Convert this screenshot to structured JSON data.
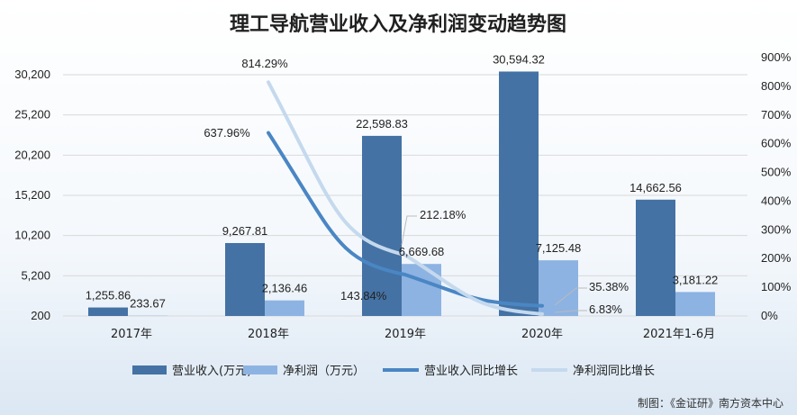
{
  "chart_data": {
    "type": "bar+line",
    "title": "理工导航营业收入及净利润变动趋势图",
    "categories": [
      "2017年",
      "2018年",
      "2019年",
      "2020年",
      "2021年1-6月"
    ],
    "series": [
      {
        "name": "营业收入(万元)",
        "kind": "bar",
        "axis": "left",
        "color": "#4472a4",
        "values": [
          1255.86,
          9267.81,
          22598.83,
          30594.32,
          14662.56
        ],
        "labels": [
          "1,255.86",
          "9,267.81",
          "22,598.83",
          "30,594.32",
          "14,662.56"
        ]
      },
      {
        "name": "净利润（万元）",
        "kind": "bar",
        "axis": "left",
        "color": "#8db3e2",
        "values": [
          233.67,
          2136.46,
          6669.68,
          7125.48,
          3181.22
        ],
        "labels": [
          "233.67",
          "2,136.46",
          "6,669.68",
          "7,125.48",
          "3,181.22"
        ]
      },
      {
        "name": "营业收入同比增长",
        "kind": "line",
        "axis": "right",
        "color": "#4a86c4",
        "values": [
          null,
          637.96,
          143.84,
          35.38,
          null
        ],
        "labels": [
          null,
          "637.96%",
          "143.84%",
          "35.38%",
          null
        ]
      },
      {
        "name": "净利润同比增长",
        "kind": "line",
        "axis": "right",
        "color": "#c5d9ee",
        "values": [
          null,
          814.29,
          212.18,
          6.83,
          null
        ],
        "labels": [
          null,
          "814.29%",
          "212.18%",
          "6.83%",
          null
        ]
      }
    ],
    "y_left": {
      "ticks": [
        "30,200",
        "25,200",
        "20,200",
        "15,200",
        "10,200",
        "5,200",
        "200"
      ],
      "min": 200,
      "max": 30200
    },
    "y_right": {
      "ticks": [
        "900%",
        "800%",
        "700%",
        "600%",
        "500%",
        "400%",
        "300%",
        "200%",
        "100%",
        "0%"
      ],
      "min": 0,
      "max": 900
    },
    "grid": true,
    "legend": "bottom",
    "source": "制图：《金证研》南方资本中心"
  }
}
